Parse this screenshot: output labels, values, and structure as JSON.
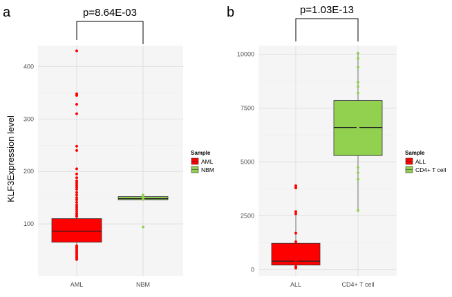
{
  "chart_data": [
    {
      "type": "box",
      "panel_label": "a",
      "title": "p=8.64E-03",
      "ylabel": "KLF3Expression level",
      "ylim": [
        0,
        440
      ],
      "yticks": [
        100,
        200,
        300,
        400
      ],
      "categories": [
        "AML",
        "NBM"
      ],
      "legend": {
        "title": "Sample",
        "position": "right",
        "entries": [
          "AML",
          "NBM"
        ]
      },
      "colors": {
        "AML": "#ff0000",
        "NBM": "#92d050"
      },
      "grid": true,
      "series": [
        {
          "name": "AML",
          "q1": 65,
          "median": 86,
          "q3": 110,
          "whisker_low": 30,
          "whisker_high": 165,
          "points": [
            430,
            348,
            345,
            328,
            310,
            248,
            240,
            205,
            195,
            188,
            182,
            178,
            174,
            170,
            166,
            160,
            155,
            150,
            146,
            141,
            136,
            132,
            128,
            124,
            120,
            117,
            114,
            58,
            55,
            52,
            49,
            46,
            43,
            40,
            37,
            35,
            32
          ]
        },
        {
          "name": "NBM",
          "q1": 146,
          "median": 148,
          "q3": 152,
          "whisker_low": 144,
          "whisker_high": 155,
          "points": [
            150,
            152,
            155,
            147,
            94
          ]
        }
      ]
    },
    {
      "type": "box",
      "panel_label": "b",
      "title": "p=1.03E-13",
      "ylabel": "",
      "ylim": [
        -300,
        10400
      ],
      "yticks": [
        0,
        2500,
        5000,
        7500,
        10000
      ],
      "categories": [
        "ALL",
        "CD4+ T cell"
      ],
      "legend": {
        "title": "Sample",
        "position": "right",
        "entries": [
          "ALL",
          "CD4+ T cell"
        ]
      },
      "colors": {
        "ALL": "#ff0000",
        "CD4+ T cell": "#92d050"
      },
      "grid": true,
      "series": [
        {
          "name": "ALL",
          "q1": 220,
          "median": 400,
          "q3": 1230,
          "whisker_low": 50,
          "whisker_high": 2700,
          "points": [
            3900,
            3800,
            2700,
            2600,
            1700,
            1300,
            1100,
            800,
            600,
            450,
            300,
            150,
            80
          ]
        },
        {
          "name": "CD4+ T cell",
          "q1": 5300,
          "median": 6600,
          "q3": 7850,
          "whisker_low": 2750,
          "whisker_high": 10100,
          "points": [
            10050,
            9800,
            9400,
            8700,
            8500,
            8200,
            7000,
            6600,
            5800,
            4750,
            4500,
            4200,
            2750
          ]
        }
      ]
    }
  ]
}
